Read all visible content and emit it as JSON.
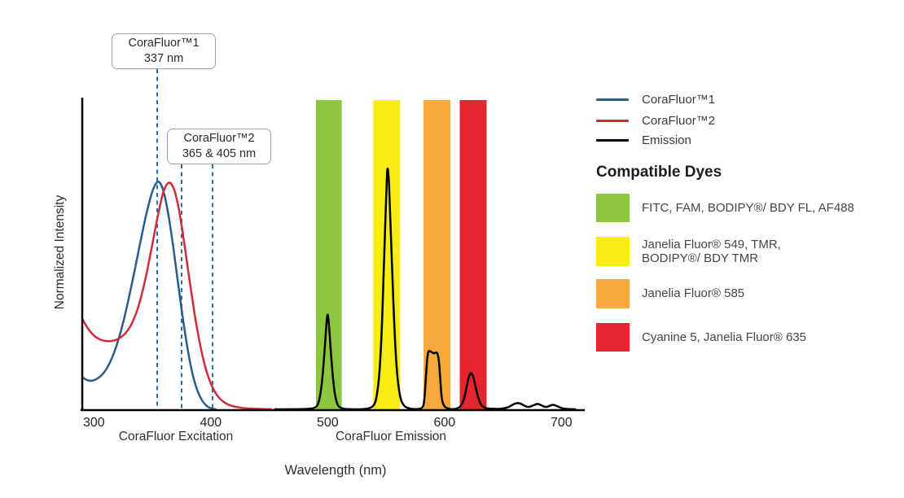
{
  "figure": {
    "y_axis_label": "Normalized Intensity",
    "x_axis_label": "Wavelength (nm)",
    "sublabel_excitation": "CoraFluor Excitation",
    "sublabel_emission": "CoraFluor Emission"
  },
  "callouts": [
    {
      "line1": "CoraFluor™1",
      "line2": "337 nm"
    },
    {
      "line1": "CoraFluor™2",
      "line2": "365 & 405 nm"
    }
  ],
  "legend": {
    "series": [
      {
        "label": "CoraFluor™1",
        "color": "#2a5d8f"
      },
      {
        "label": "CoraFluor™2",
        "color": "#d22b3a"
      },
      {
        "label": "Emission",
        "color": "#000000"
      }
    ],
    "dyes_title": "Compatible Dyes",
    "dyes": [
      {
        "color": "#8dc63f",
        "lines": [
          "FITC, FAM, BODIPY®/ BDY FL, AF488",
          ""
        ]
      },
      {
        "color": "#f7ec13",
        "lines": [
          "Janelia Fluor® 549, TMR,",
          "BODIPY®/ BDY TMR"
        ]
      },
      {
        "color": "#f7a83b",
        "lines": [
          "Janelia Fluor® 585",
          ""
        ]
      },
      {
        "color": "#e6252e",
        "lines": [
          "Cyanine 5, Janelia Fluor® 635",
          ""
        ]
      }
    ]
  },
  "chart_data": {
    "type": "line",
    "title": "",
    "xlabel": "Wavelength (nm)",
    "ylabel": "Normalized Intensity",
    "xlim": [
      290,
      720
    ],
    "ylim": [
      0,
      1.0
    ],
    "x_ticks": [
      300,
      400,
      500,
      600,
      700
    ],
    "grid": false,
    "legend_position": "right",
    "dashed_lines": {
      "color": "#2e6da3",
      "values_nm": [
        337,
        365,
        405
      ],
      "labels": [
        "CoraFluor™1 337 nm",
        "CoraFluor™2 365 & 405 nm",
        "CoraFluor™2 365 & 405 nm"
      ]
    },
    "bands": [
      {
        "name": "green",
        "color": "#8dc63f",
        "nm": [
          490,
          512
        ],
        "value": 1.0,
        "dyes": "FITC, FAM, BODIPY®/ BDY FL, AF488"
      },
      {
        "name": "yellow",
        "color": "#f7ec13",
        "nm": [
          539,
          562
        ],
        "value": 1.0,
        "dyes": "Janelia Fluor® 549, TMR, BODIPY®/ BDY TMR"
      },
      {
        "name": "orange",
        "color": "#f7a83b",
        "nm": [
          582,
          605
        ],
        "value": 1.0,
        "dyes": "Janelia Fluor® 585"
      },
      {
        "name": "red",
        "color": "#e6252e",
        "nm": [
          613,
          636
        ],
        "value": 1.0,
        "dyes": "Cyanine 5, Janelia Fluor® 635"
      }
    ],
    "series": [
      {
        "name": "CoraFluor1-excitation",
        "color": "#2a5d8f",
        "points": [
          [
            290,
            0.105
          ],
          [
            292,
            0.098
          ],
          [
            295,
            0.093
          ],
          [
            298,
            0.092
          ],
          [
            301,
            0.095
          ],
          [
            305,
            0.104
          ],
          [
            309,
            0.12
          ],
          [
            313,
            0.145
          ],
          [
            317,
            0.18
          ],
          [
            321,
            0.225
          ],
          [
            325,
            0.28
          ],
          [
            329,
            0.345
          ],
          [
            333,
            0.415
          ],
          [
            337,
            0.49
          ],
          [
            341,
            0.565
          ],
          [
            345,
            0.635
          ],
          [
            349,
            0.695
          ],
          [
            352,
            0.725
          ],
          [
            355,
            0.74
          ],
          [
            358,
            0.725
          ],
          [
            361,
            0.685
          ],
          [
            364,
            0.625
          ],
          [
            367,
            0.55
          ],
          [
            370,
            0.465
          ],
          [
            373,
            0.38
          ],
          [
            376,
            0.295
          ],
          [
            379,
            0.22
          ],
          [
            382,
            0.155
          ],
          [
            385,
            0.103
          ],
          [
            388,
            0.065
          ],
          [
            391,
            0.038
          ],
          [
            394,
            0.02
          ],
          [
            397,
            0.009
          ],
          [
            400,
            0.003
          ],
          [
            404,
            0
          ]
        ]
      },
      {
        "name": "CoraFluor2-excitation",
        "color": "#d22b3a",
        "points": [
          [
            290,
            0.293
          ],
          [
            293,
            0.272
          ],
          [
            296,
            0.255
          ],
          [
            299,
            0.242
          ],
          [
            302,
            0.232
          ],
          [
            305,
            0.226
          ],
          [
            308,
            0.222
          ],
          [
            312,
            0.22
          ],
          [
            316,
            0.221
          ],
          [
            320,
            0.226
          ],
          [
            324,
            0.235
          ],
          [
            328,
            0.25
          ],
          [
            332,
            0.273
          ],
          [
            336,
            0.308
          ],
          [
            340,
            0.357
          ],
          [
            344,
            0.42
          ],
          [
            348,
            0.495
          ],
          [
            352,
            0.575
          ],
          [
            356,
            0.65
          ],
          [
            359,
            0.7
          ],
          [
            362,
            0.728
          ],
          [
            365,
            0.735
          ],
          [
            368,
            0.72
          ],
          [
            371,
            0.68
          ],
          [
            374,
            0.62
          ],
          [
            377,
            0.545
          ],
          [
            380,
            0.465
          ],
          [
            384,
            0.36
          ],
          [
            388,
            0.265
          ],
          [
            392,
            0.186
          ],
          [
            396,
            0.125
          ],
          [
            400,
            0.082
          ],
          [
            404,
            0.052
          ],
          [
            408,
            0.033
          ],
          [
            412,
            0.021
          ],
          [
            416,
            0.013
          ],
          [
            421,
            0.008
          ],
          [
            427,
            0.004
          ],
          [
            434,
            0.002
          ],
          [
            442,
            0.001
          ],
          [
            452,
            0
          ]
        ]
      },
      {
        "name": "Emission",
        "color": "#000000",
        "points": [
          [
            455,
            0
          ],
          [
            480,
            0
          ],
          [
            488,
            0.003
          ],
          [
            491,
            0.01
          ],
          [
            493,
            0.03
          ],
          [
            495,
            0.08
          ],
          [
            497,
            0.17
          ],
          [
            499,
            0.28
          ],
          [
            500,
            0.315
          ],
          [
            501,
            0.28
          ],
          [
            503,
            0.17
          ],
          [
            505,
            0.08
          ],
          [
            507,
            0.03
          ],
          [
            509,
            0.01
          ],
          [
            512,
            0.003
          ],
          [
            516,
            0
          ],
          [
            530,
            0
          ],
          [
            537,
            0.004
          ],
          [
            540,
            0.015
          ],
          [
            542,
            0.04
          ],
          [
            544,
            0.1
          ],
          [
            546,
            0.22
          ],
          [
            548,
            0.45
          ],
          [
            550,
            0.68
          ],
          [
            551,
            0.785
          ],
          [
            552,
            0.77
          ],
          [
            553,
            0.68
          ],
          [
            555,
            0.47
          ],
          [
            557,
            0.27
          ],
          [
            559,
            0.13
          ],
          [
            561,
            0.06
          ],
          [
            563,
            0.025
          ],
          [
            566,
            0.008
          ],
          [
            570,
            0.002
          ],
          [
            575,
            0
          ],
          [
            580,
            0.002
          ],
          [
            582,
            0.01
          ],
          [
            583,
            0.04
          ],
          [
            584,
            0.1
          ],
          [
            585,
            0.16
          ],
          [
            586,
            0.185
          ],
          [
            587,
            0.19
          ],
          [
            589,
            0.185
          ],
          [
            591,
            0.18
          ],
          [
            593,
            0.185
          ],
          [
            594,
            0.18
          ],
          [
            595,
            0.165
          ],
          [
            596,
            0.12
          ],
          [
            597,
            0.06
          ],
          [
            598,
            0.025
          ],
          [
            600,
            0.008
          ],
          [
            603,
            0.002
          ],
          [
            607,
            0
          ],
          [
            611,
            0.002
          ],
          [
            614,
            0.01
          ],
          [
            617,
            0.035
          ],
          [
            619,
            0.075
          ],
          [
            621,
            0.11
          ],
          [
            623,
            0.12
          ],
          [
            625,
            0.1
          ],
          [
            627,
            0.065
          ],
          [
            629,
            0.035
          ],
          [
            631,
            0.015
          ],
          [
            634,
            0.005
          ],
          [
            638,
            0.002
          ],
          [
            645,
            0.001
          ],
          [
            650,
            0.002
          ],
          [
            654,
            0.006
          ],
          [
            657,
            0.012
          ],
          [
            660,
            0.018
          ],
          [
            663,
            0.021
          ],
          [
            666,
            0.017
          ],
          [
            669,
            0.01
          ],
          [
            672,
            0.007
          ],
          [
            675,
            0.011
          ],
          [
            678,
            0.016
          ],
          [
            680,
            0.018
          ],
          [
            683,
            0.013
          ],
          [
            686,
            0.007
          ],
          [
            689,
            0.009
          ],
          [
            692,
            0.015
          ],
          [
            694,
            0.014
          ],
          [
            697,
            0.009
          ],
          [
            700,
            0.004
          ],
          [
            704,
            0.001
          ],
          [
            712,
            0
          ]
        ]
      }
    ],
    "excitation_peaks_nm": {
      "CoraFluor1": 355,
      "CoraFluor2": 365
    },
    "emission_peaks_nm": [
      500,
      551,
      590,
      623
    ]
  }
}
